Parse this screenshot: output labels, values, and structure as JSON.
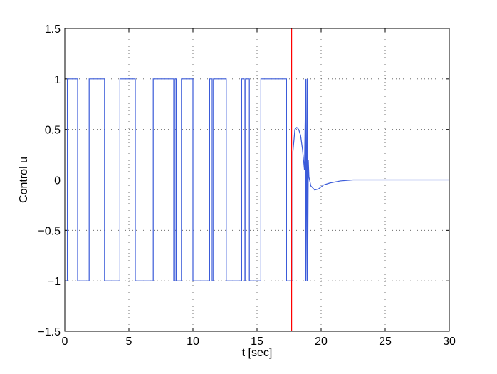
{
  "chart_data": {
    "type": "line",
    "title": "",
    "xlabel": "t [sec]",
    "ylabel": "Control u",
    "xlim": [
      0,
      30
    ],
    "ylim": [
      -1.5,
      1.5
    ],
    "xticks": [
      0,
      5,
      10,
      15,
      20,
      25,
      30
    ],
    "xtick_labels": [
      "0",
      "5",
      "10",
      "15",
      "20",
      "25",
      "30"
    ],
    "yticks": [
      -1.5,
      -1,
      -0.5,
      0,
      0.5,
      1,
      1.5
    ],
    "ytick_labels": [
      "−1.5",
      "−1",
      "−0.5",
      "0",
      "0.5",
      "1",
      "1.5"
    ],
    "grid": true,
    "series": [
      {
        "color": "#3b5bd9",
        "x": [
          0,
          0.2,
          0.2,
          1.0,
          1.0,
          1.9,
          1.9,
          3.1,
          3.1,
          4.3,
          4.3,
          5.5,
          5.5,
          6.9,
          6.9,
          8.5,
          8.5,
          8.6,
          8.6,
          8.7,
          8.7,
          8.75,
          8.75,
          9.1,
          9.1,
          10.0,
          10.0,
          11.3,
          11.3,
          11.5,
          11.5,
          11.6,
          11.6,
          12.6,
          12.6,
          12.65,
          12.65,
          13.8,
          13.8,
          14.0,
          14.0,
          14.1,
          14.1,
          14.4,
          14.4,
          15.3,
          15.3,
          17.3,
          17.3,
          17.8,
          17.8,
          17.9,
          17.95,
          18.1,
          18.25,
          18.4,
          18.55,
          18.7,
          18.8,
          18.8,
          18.9,
          18.9,
          18.95,
          18.95,
          19.0,
          19.05,
          19.2,
          19.5,
          19.8,
          20.2,
          20.7,
          21.5,
          22.5,
          24,
          26,
          30
        ],
        "y": [
          -1,
          -1,
          1,
          1,
          -1,
          -1,
          1,
          1,
          -1,
          -1,
          1,
          1,
          -1,
          -1,
          1,
          1,
          -1,
          -1,
          1,
          1,
          -1,
          -1,
          -1,
          -1,
          1,
          1,
          -1,
          -1,
          1,
          1,
          -1,
          -1,
          1,
          1,
          -1,
          -1,
          -1,
          -1,
          1,
          1,
          -1,
          -1,
          1,
          1,
          -1,
          -1,
          1,
          1,
          -1,
          -1,
          0.28,
          0.42,
          0.5,
          0.52,
          0.5,
          0.44,
          0.3,
          0.1,
          1,
          -1,
          1,
          -1,
          1,
          -1,
          0.2,
          0.03,
          -0.06,
          -0.1,
          -0.09,
          -0.05,
          -0.03,
          -0.01,
          0,
          0,
          0,
          0
        ]
      }
    ],
    "vline": {
      "x": 17.7,
      "color": "#ff0000"
    }
  }
}
